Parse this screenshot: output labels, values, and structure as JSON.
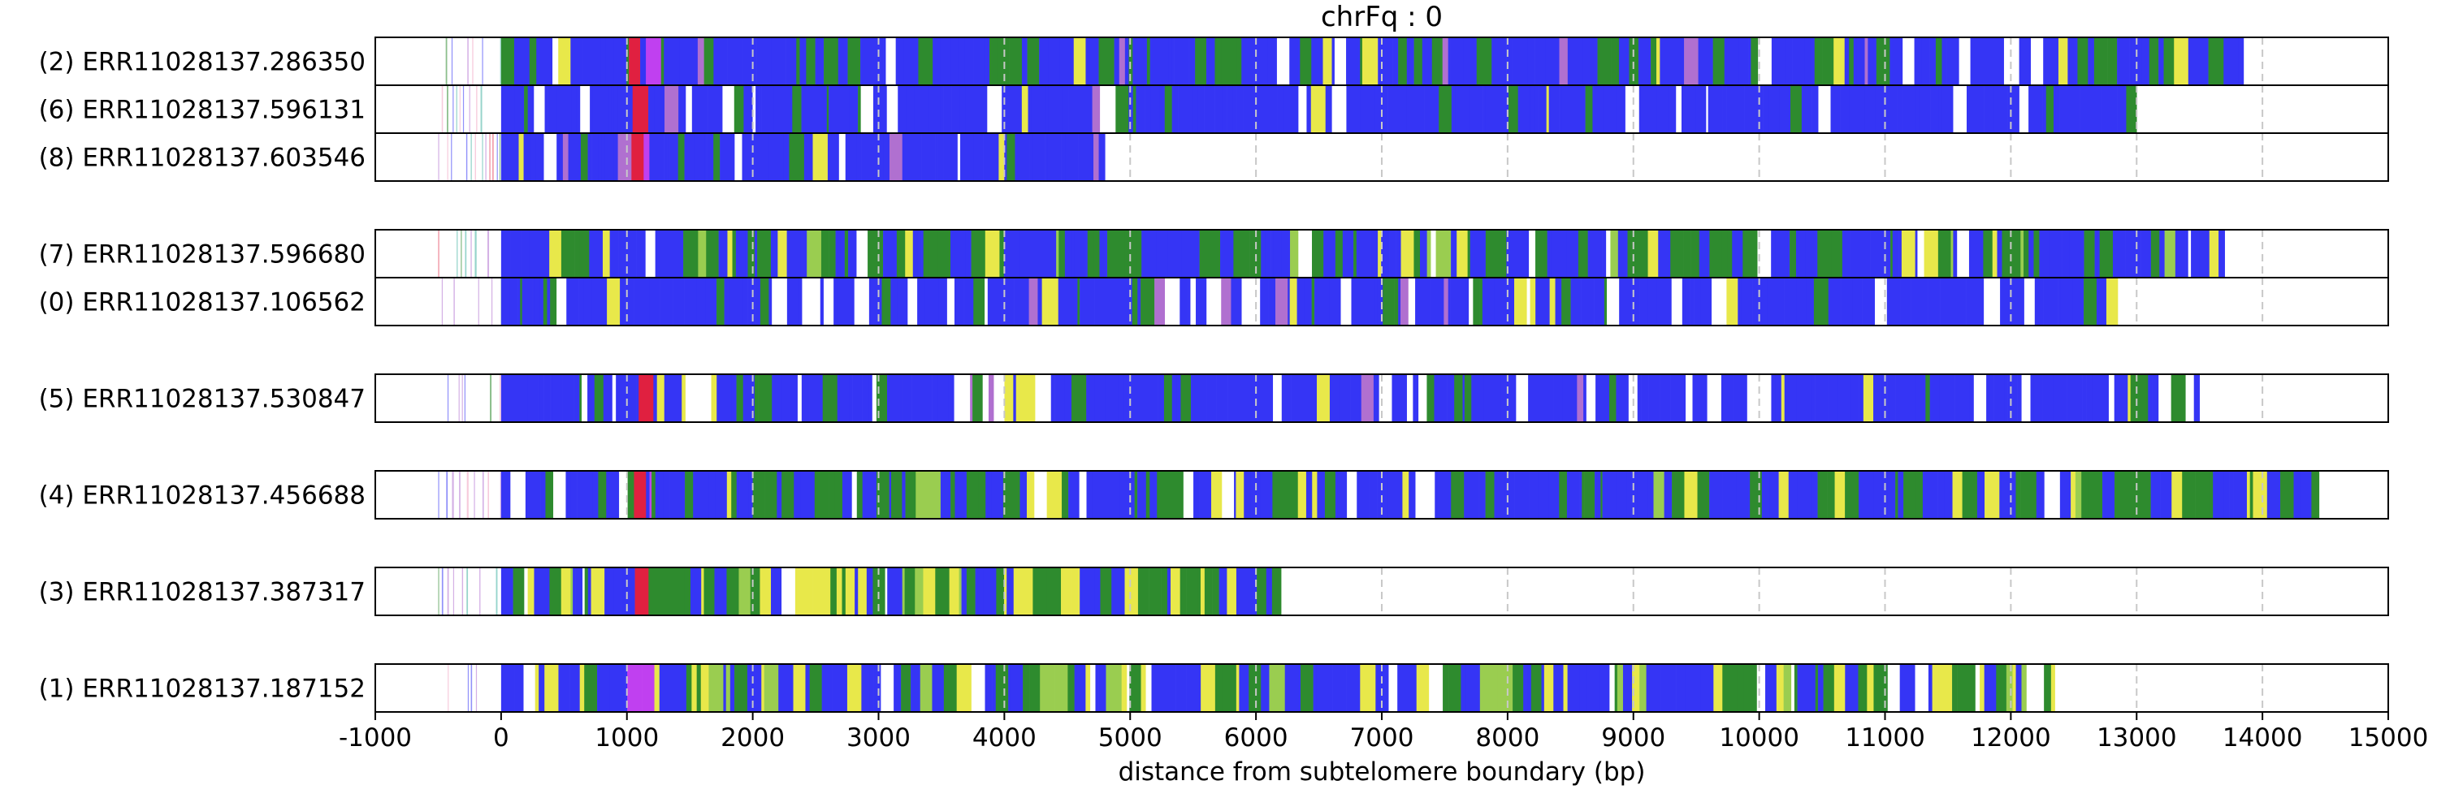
{
  "chart_data": {
    "type": "read-track",
    "title": "chrFq : 0",
    "xlabel": "distance from subtelomere boundary (bp)",
    "xlim": [
      -1000,
      15000
    ],
    "xticks": [
      -1000,
      0,
      1000,
      2000,
      3000,
      4000,
      5000,
      6000,
      7000,
      8000,
      9000,
      10000,
      11000,
      12000,
      13000,
      14000,
      15000
    ],
    "grid_x": [
      1000,
      2000,
      3000,
      4000,
      5000,
      6000,
      7000,
      8000,
      9000,
      10000,
      11000,
      12000,
      13000,
      14000
    ],
    "colors": {
      "blue": "#3535f5",
      "green": "#2e8b2e",
      "yellow": "#e8e84a",
      "lightgreen": "#9acd50",
      "white": "#ffffff",
      "purple": "#b070d0",
      "violet": "#c040f0",
      "red": "#e02040",
      "teal": "#40b0a0",
      "pink": "#f0a0c0",
      "grid": "#c8c8c8"
    },
    "groups": [
      {
        "reads": [
          {
            "label": "(2) ERR11028137.286350",
            "start": -500,
            "end": 13850,
            "profile": "mixed",
            "seed": 11
          },
          {
            "label": "(6) ERR11028137.596131",
            "start": -500,
            "end": 13000,
            "profile": "blue",
            "seed": 23
          },
          {
            "label": "(8) ERR11028137.603546",
            "start": -500,
            "end": 4800,
            "profile": "blue",
            "seed": 37
          }
        ]
      },
      {
        "reads": [
          {
            "label": "(7) ERR11028137.596680",
            "start": -500,
            "end": 13700,
            "profile": "green",
            "seed": 41
          },
          {
            "label": "(0) ERR11028137.106562",
            "start": -500,
            "end": 12850,
            "profile": "bluewhite",
            "seed": 53
          }
        ]
      },
      {
        "reads": [
          {
            "label": "(5) ERR11028137.530847",
            "start": -500,
            "end": 13500,
            "profile": "bluewhite",
            "seed": 67
          }
        ]
      },
      {
        "reads": [
          {
            "label": "(4) ERR11028137.456688",
            "start": -500,
            "end": 14450,
            "profile": "green",
            "seed": 71
          }
        ]
      },
      {
        "reads": [
          {
            "label": "(3) ERR11028137.387317",
            "start": -500,
            "end": 6200,
            "profile": "yellow",
            "seed": 83
          }
        ]
      },
      {
        "reads": [
          {
            "label": "(1) ERR11028137.187152",
            "start": -500,
            "end": 12350,
            "profile": "mixedyellow",
            "seed": 97
          }
        ]
      }
    ]
  }
}
